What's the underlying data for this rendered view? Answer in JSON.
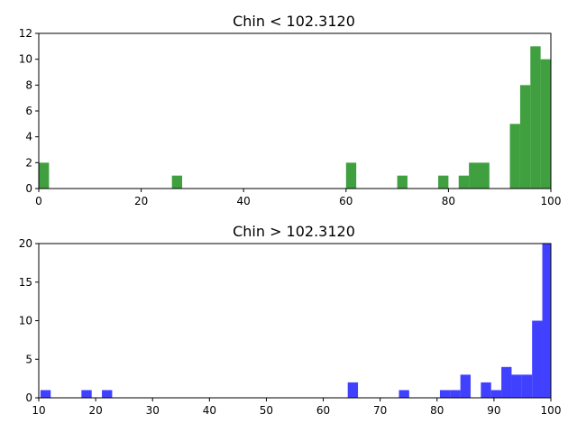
{
  "chart_data": [
    {
      "type": "bar",
      "title": "Chin < 102.3120",
      "xlabel": "",
      "ylabel": "",
      "xlim": [
        0,
        100
      ],
      "ylim": [
        0,
        12
      ],
      "x_ticks": [
        0,
        20,
        40,
        60,
        80,
        100
      ],
      "y_ticks": [
        0,
        2,
        4,
        6,
        8,
        10,
        12
      ],
      "color": "#008000",
      "bin_width": 2,
      "bins": [
        {
          "x": 0,
          "value": 2
        },
        {
          "x": 26,
          "value": 1
        },
        {
          "x": 60,
          "value": 2
        },
        {
          "x": 70,
          "value": 1
        },
        {
          "x": 78,
          "value": 1
        },
        {
          "x": 82,
          "value": 1
        },
        {
          "x": 84,
          "value": 2
        },
        {
          "x": 86,
          "value": 2
        },
        {
          "x": 92,
          "value": 5
        },
        {
          "x": 94,
          "value": 8
        },
        {
          "x": 96,
          "value": 11
        },
        {
          "x": 98,
          "value": 10
        }
      ]
    },
    {
      "type": "bar",
      "title": "Chin > 102.3120",
      "xlabel": "",
      "ylabel": "",
      "xlim": [
        10,
        100
      ],
      "ylim": [
        0,
        20
      ],
      "x_ticks": [
        10,
        20,
        30,
        40,
        50,
        60,
        70,
        80,
        90,
        100
      ],
      "y_ticks": [
        0,
        5,
        10,
        15,
        20
      ],
      "color": "#0000ff",
      "bin_width": 1.8,
      "bins": [
        {
          "x": 10.3,
          "value": 1
        },
        {
          "x": 17.5,
          "value": 1
        },
        {
          "x": 21.1,
          "value": 1
        },
        {
          "x": 64.3,
          "value": 2
        },
        {
          "x": 73.3,
          "value": 1
        },
        {
          "x": 80.5,
          "value": 1
        },
        {
          "x": 82.3,
          "value": 1
        },
        {
          "x": 84.1,
          "value": 3
        },
        {
          "x": 87.7,
          "value": 2
        },
        {
          "x": 89.5,
          "value": 1
        },
        {
          "x": 91.3,
          "value": 4
        },
        {
          "x": 93.1,
          "value": 3
        },
        {
          "x": 94.9,
          "value": 3
        },
        {
          "x": 96.7,
          "value": 10
        },
        {
          "x": 98.5,
          "value": 20
        }
      ]
    }
  ]
}
